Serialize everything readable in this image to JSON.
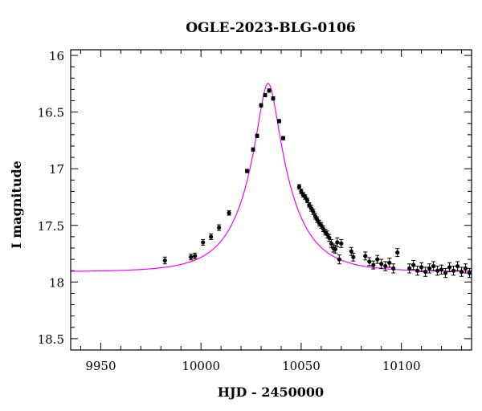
{
  "chart_data": {
    "type": "scatter",
    "title": "OGLE-2023-BLG-0106",
    "xlabel": "HJD - 2450000",
    "ylabel": "I magnitude",
    "xlim": [
      9935,
      10135
    ],
    "ylim": [
      18.6,
      15.95
    ],
    "y_inverted": true,
    "grid": false,
    "x_ticks": [
      9950,
      10000,
      10050,
      10100
    ],
    "y_ticks": [
      16,
      16.5,
      17,
      17.5,
      18,
      18.5
    ],
    "colors": {
      "model": "#ff00ff",
      "points": "#000000"
    },
    "model": {
      "t0": 10033.5,
      "u0": 0.22,
      "tE": 22,
      "baseline_mag": 17.91
    },
    "series": [
      {
        "x": [
          9982,
          9995,
          9997,
          10001,
          10005,
          10009,
          10014,
          10023,
          10026,
          10028,
          10030,
          10032,
          10034,
          10036,
          10039,
          10041,
          10049,
          10050,
          10051,
          10052,
          10053,
          10054,
          10055,
          10056,
          10057,
          10058,
          10059,
          10060,
          10061,
          10062,
          10063,
          10064,
          10065,
          10066,
          10067,
          10068,
          10069,
          10070,
          10075,
          10076,
          10082,
          10084,
          10086,
          10088,
          10090,
          10092,
          10094,
          10096,
          10098,
          10104,
          10106,
          10108,
          10110,
          10112,
          10114,
          10116,
          10118,
          10120,
          10122,
          10124,
          10126,
          10128,
          10130,
          10132,
          10134
        ],
        "values": [
          17.81,
          17.78,
          17.77,
          17.65,
          17.6,
          17.52,
          17.39,
          17.02,
          16.83,
          16.71,
          16.44,
          16.35,
          16.31,
          16.38,
          16.58,
          16.73,
          17.16,
          17.2,
          17.23,
          17.25,
          17.28,
          17.32,
          17.35,
          17.38,
          17.42,
          17.45,
          17.48,
          17.5,
          17.53,
          17.56,
          17.58,
          17.61,
          17.66,
          17.7,
          17.71,
          17.65,
          17.8,
          17.66,
          17.73,
          17.78,
          17.77,
          17.82,
          17.85,
          17.8,
          17.84,
          17.86,
          17.83,
          17.88,
          17.74,
          17.88,
          17.85,
          17.9,
          17.87,
          17.91,
          17.88,
          17.86,
          17.9,
          17.89,
          17.92,
          17.87,
          17.9,
          17.86,
          17.91,
          17.88,
          17.92
        ],
        "errors": [
          0.03,
          0.025,
          0.025,
          0.025,
          0.025,
          0.025,
          0.02,
          0.015,
          0.015,
          0.015,
          0.015,
          0.015,
          0.015,
          0.015,
          0.015,
          0.015,
          0.02,
          0.02,
          0.02,
          0.02,
          0.02,
          0.02,
          0.025,
          0.025,
          0.025,
          0.025,
          0.025,
          0.025,
          0.025,
          0.025,
          0.03,
          0.03,
          0.035,
          0.035,
          0.035,
          0.04,
          0.04,
          0.035,
          0.035,
          0.035,
          0.035,
          0.035,
          0.035,
          0.035,
          0.04,
          0.04,
          0.04,
          0.04,
          0.035,
          0.04,
          0.04,
          0.04,
          0.04,
          0.04,
          0.04,
          0.04,
          0.04,
          0.04,
          0.04,
          0.04,
          0.04,
          0.04,
          0.04,
          0.04,
          0.04
        ]
      }
    ]
  }
}
